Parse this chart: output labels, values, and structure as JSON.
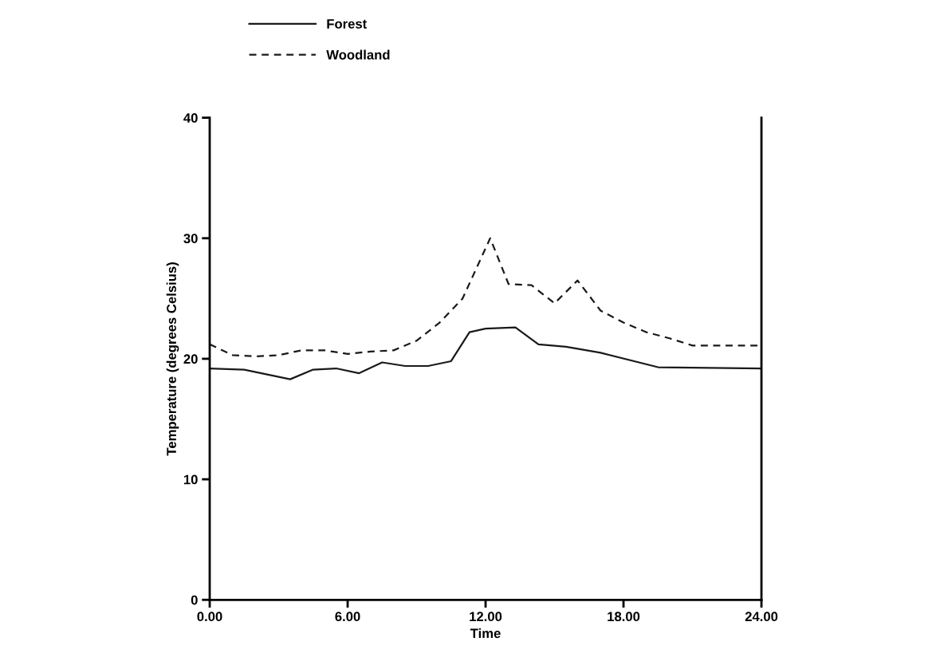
{
  "chart_data": {
    "type": "line",
    "xlabel": "Time",
    "ylabel": "Temperature (degrees Celsius)",
    "xlim": [
      0,
      24
    ],
    "xticks": [
      {
        "value": 0,
        "label": "0.00"
      },
      {
        "value": 6,
        "label": "6.00"
      },
      {
        "value": 12,
        "label": "12.00"
      },
      {
        "value": 18,
        "label": "18.00"
      },
      {
        "value": 24,
        "label": "24.00"
      }
    ],
    "ylim": [
      0,
      40
    ],
    "yticks": [
      0,
      10,
      20,
      30,
      40
    ],
    "grid": false,
    "legend": "top",
    "marker": "none",
    "series": [
      {
        "name": "Forest",
        "color": "#1a1a1a",
        "line_style": "solid",
        "x": [
          0,
          1.5,
          3.5,
          4.5,
          5.5,
          6.5,
          7.5,
          8.5,
          9.5,
          10.5,
          11.3,
          12,
          13.3,
          14.3,
          15.5,
          17,
          19.5,
          24
        ],
        "values": [
          19.2,
          19.1,
          18.3,
          19.1,
          19.2,
          18.8,
          19.7,
          19.4,
          19.4,
          19.8,
          22.2,
          22.5,
          22.6,
          21.2,
          21,
          20.5,
          19.3,
          19.2
        ]
      },
      {
        "name": "Woodland",
        "color": "#1a1a1a",
        "line_style": "dashed",
        "x": [
          0,
          1,
          2,
          3,
          4,
          5,
          6,
          7,
          8,
          9,
          10,
          11,
          12.2,
          13,
          14,
          15,
          16,
          17,
          18,
          19,
          20,
          21,
          22,
          24
        ],
        "values": [
          21.2,
          20.3,
          20.2,
          20.3,
          20.7,
          20.7,
          20.4,
          20.6,
          20.7,
          21.5,
          23,
          25,
          30,
          26.2,
          26.1,
          24.6,
          26.5,
          24,
          23,
          22.2,
          21.7,
          21.1,
          21.1,
          21.1
        ]
      }
    ]
  }
}
